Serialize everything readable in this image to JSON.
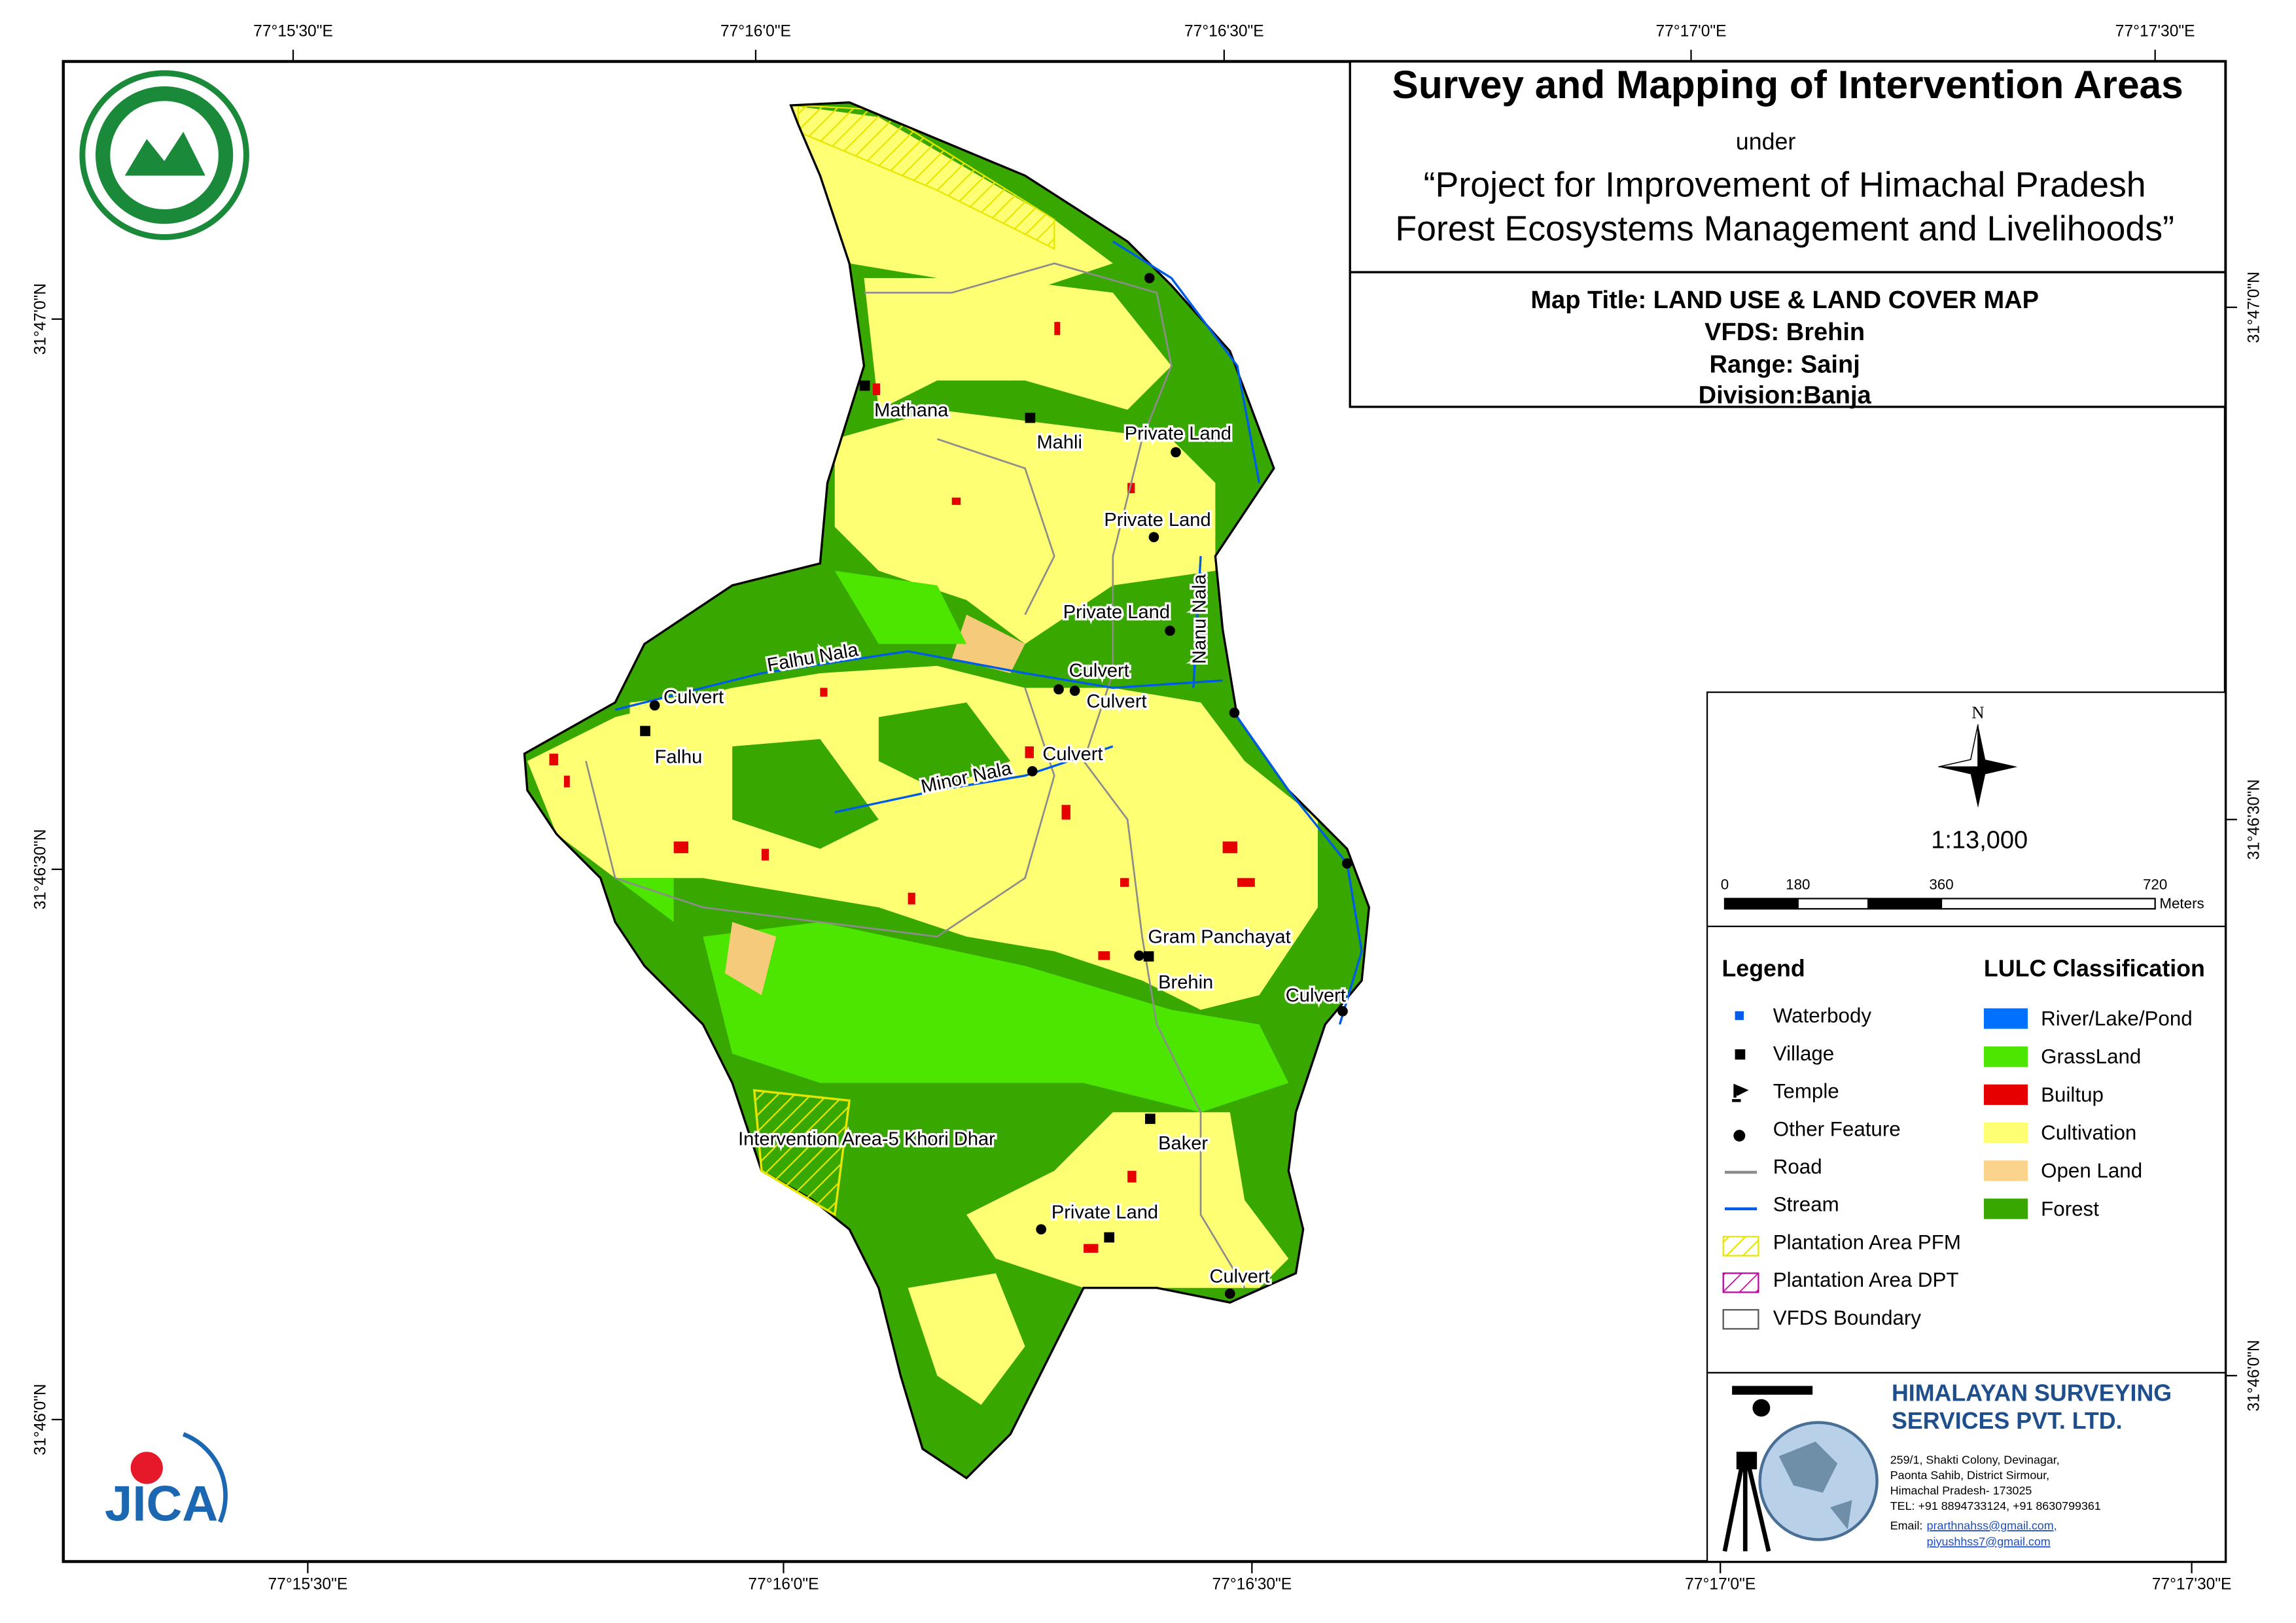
{
  "header": {
    "title": "Survey and Mapping of Intervention Areas",
    "under": "under",
    "project_lines": [
      "“Project for Improvement of Himachal Pradesh",
      "Forest Ecosystems Management and Livelihoods”"
    ]
  },
  "map_info": {
    "map_title": "Map Title: LAND USE & LAND COVER MAP",
    "vfds": "VFDS: Brehin",
    "range": "Range: Sainj",
    "division": "Division:Banja"
  },
  "grid_labels": {
    "top": [
      "77°15'30\"E",
      "77°16'0\"E",
      "77°16'30\"E",
      "77°17'0\"E",
      "77°17'30\"E"
    ],
    "bottom": [
      "77°15'30\"E",
      "77°16'0\"E",
      "77°16'30\"E",
      "77°17'0\"E",
      "77°17'30\"E"
    ],
    "left": [
      "31°47'0\"N",
      "31°46'30\"N",
      "31°46'0\"N"
    ],
    "right": [
      "31°47'0\"N",
      "31°46'30\"N",
      "31°46'0\"N"
    ]
  },
  "place_labels": [
    "Mathana",
    "Mahli",
    "Private Land",
    "Private Land",
    "Private Land",
    "Nanu Nala",
    "Falhu Nala",
    "Culvert",
    "Culvert",
    "Culvert",
    "Falhu",
    "Minor Nala",
    "Culvert",
    "Gram Panchayat",
    "Brehin",
    "Culvert",
    "Intervention Area-5 Khori Dhar",
    "Baker",
    "Private Land",
    "Culvert"
  ],
  "north": "N",
  "scale": "1:13,000",
  "scale_bar": {
    "ticks": [
      "0",
      "180",
      "360",
      "720"
    ],
    "unit": "Meters"
  },
  "legend": {
    "title": "Legend",
    "items": [
      "Waterbody",
      "Village",
      "Temple",
      "Other Feature",
      "Road",
      "Stream",
      "Plantation Area PFM",
      "Plantation Area DPT",
      "VFDS Boundary"
    ]
  },
  "lulc": {
    "title": "LULC Classification",
    "items": [
      "River/Lake/Pond",
      "GrassLand",
      "Builtup",
      "Cultivation",
      "Open Land",
      "Forest"
    ]
  },
  "company": {
    "name_lines": [
      "HIMALAYAN SURVEYING",
      "SERVICES PVT. LTD."
    ],
    "address_lines": [
      "259/1, Shakti Colony, Devinagar,",
      "Paonta Sahib, District Sirmour,",
      "Himachal Pradesh- 173025",
      "TEL: +91 8894733124, +91 8630799361"
    ],
    "email_label": "Email:",
    "emails": [
      "prarthnahss@gmail.com,",
      "piyushhss7@gmail.com"
    ]
  },
  "jica": "JICA"
}
